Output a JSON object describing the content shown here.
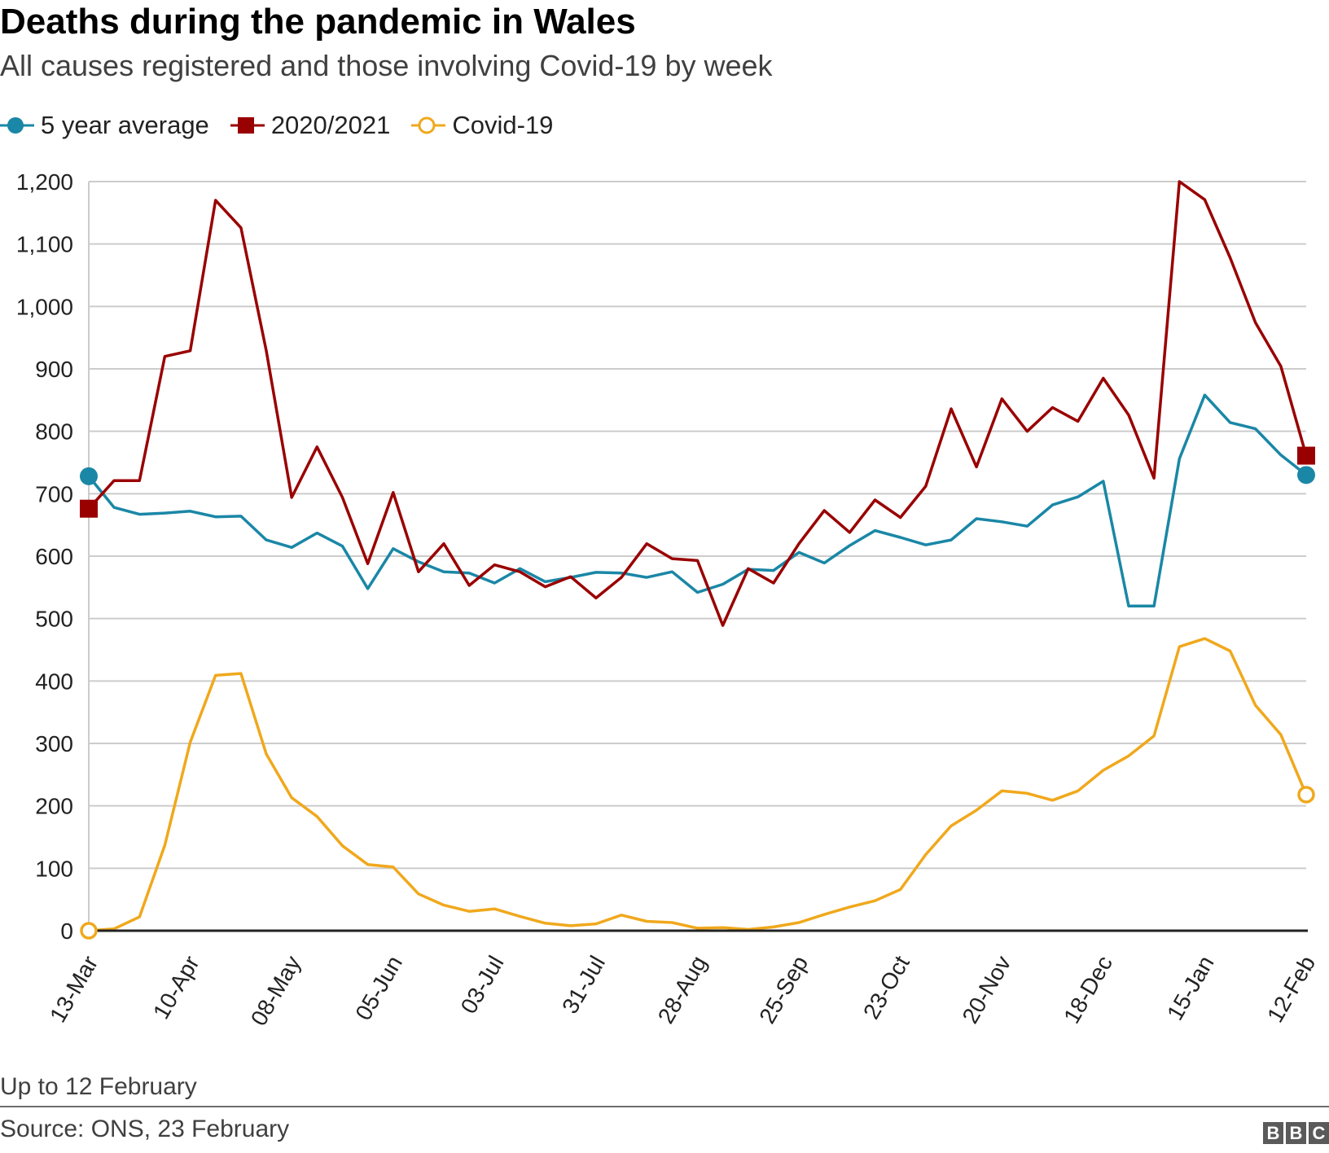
{
  "header": {
    "title": "Deaths during the pandemic in Wales",
    "subtitle": "All causes registered and those involving Covid-19 by week"
  },
  "legend": {
    "items": [
      {
        "label": "5 year average",
        "color": "#1a87a6",
        "marker": "filled-circle"
      },
      {
        "label": "2020/2021",
        "color": "#990000",
        "marker": "filled-square"
      },
      {
        "label": "Covid-19",
        "color": "#f0a81c",
        "marker": "hollow-circle"
      }
    ]
  },
  "footer": {
    "note": "Up to 12 February",
    "source": "Source: ONS, 23 February",
    "logo_letters": [
      "B",
      "B",
      "C"
    ]
  },
  "chart_data": {
    "type": "line",
    "title": "Deaths during the pandemic in Wales",
    "subtitle": "All causes registered and those involving Covid-19 by week",
    "xlabel": "",
    "ylabel": "",
    "ylim": [
      0,
      1200
    ],
    "yticks": [
      0,
      100,
      200,
      300,
      400,
      500,
      600,
      700,
      800,
      900,
      1000,
      1100,
      1200
    ],
    "ytick_labels": [
      "0",
      "100",
      "200",
      "300",
      "400",
      "500",
      "600",
      "700",
      "800",
      "900",
      "1,000",
      "1,100",
      "1,200"
    ],
    "grid": true,
    "legend_position": "top-left",
    "x_tick_labels": [
      "13-Mar",
      "10-Apr",
      "08-May",
      "05-Jun",
      "03-Jul",
      "31-Jul",
      "28-Aug",
      "25-Sep",
      "23-Oct",
      "20-Nov",
      "18-Dec",
      "15-Jan",
      "12-Feb"
    ],
    "x_tick_every": 4,
    "n_weeks": 49,
    "series": [
      {
        "name": "5 year average",
        "color": "#1a87a6",
        "values": [
          728,
          678,
          667,
          669,
          672,
          663,
          664,
          626,
          614,
          637,
          616,
          548,
          612,
          591,
          575,
          573,
          557,
          580,
          559,
          566,
          574,
          573,
          566,
          575,
          542,
          555,
          579,
          577,
          606,
          589,
          617,
          641,
          630,
          618,
          626,
          660,
          655,
          648,
          682,
          695,
          720,
          520,
          520,
          756,
          858,
          814,
          804,
          762,
          730
        ]
      },
      {
        "name": "2020/2021",
        "color": "#990000",
        "values": [
          676,
          721,
          721,
          920,
          929,
          1170,
          1126,
          929,
          694,
          775,
          694,
          588,
          702,
          575,
          620,
          553,
          586,
          575,
          551,
          567,
          533,
          566,
          620,
          596,
          593,
          489,
          580,
          557,
          620,
          673,
          638,
          690,
          662,
          712,
          836,
          743,
          852,
          800,
          838,
          816,
          885,
          826,
          725,
          1200,
          1171,
          1078,
          974,
          904,
          761
        ]
      },
      {
        "name": "Covid-19",
        "color": "#f0a81c",
        "values": [
          0,
          3,
          22,
          137,
          302,
          409,
          412,
          283,
          213,
          183,
          136,
          106,
          102,
          59,
          41,
          31,
          35,
          23,
          12,
          8,
          11,
          25,
          15,
          13,
          4,
          5,
          2,
          6,
          13,
          26,
          38,
          48,
          66,
          122,
          168,
          193,
          224,
          220,
          209,
          224,
          257,
          280,
          312,
          455,
          468,
          448,
          361,
          314,
          218
        ]
      }
    ]
  }
}
